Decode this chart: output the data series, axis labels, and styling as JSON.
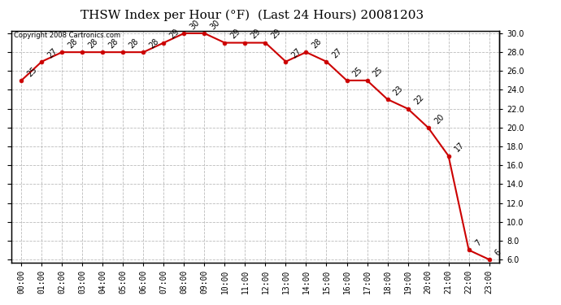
{
  "title": "THSW Index per Hour (°F)  (Last 24 Hours) 20081203",
  "copyright": "Copyright 2008 Cartronics.com",
  "hours": [
    "00:00",
    "01:00",
    "02:00",
    "03:00",
    "04:00",
    "05:00",
    "06:00",
    "07:00",
    "08:00",
    "09:00",
    "10:00",
    "11:00",
    "12:00",
    "13:00",
    "14:00",
    "15:00",
    "16:00",
    "17:00",
    "18:00",
    "19:00",
    "20:00",
    "21:00",
    "22:00",
    "23:00"
  ],
  "values": [
    25,
    27,
    28,
    28,
    28,
    28,
    28,
    29,
    30,
    30,
    29,
    29,
    29,
    27,
    28,
    27,
    25,
    25,
    23,
    22,
    20,
    17,
    7,
    6
  ],
  "ylim_min": 6.0,
  "ylim_max": 30.0,
  "yticks": [
    6.0,
    8.0,
    10.0,
    12.0,
    14.0,
    16.0,
    18.0,
    20.0,
    22.0,
    24.0,
    26.0,
    28.0,
    30.0
  ],
  "line_color": "#cc0000",
  "marker_color": "#cc0000",
  "marker_size": 3.5,
  "bg_color": "#ffffff",
  "grid_color": "#bbbbbb",
  "grid_style": "--",
  "title_fontsize": 11,
  "label_fontsize": 7,
  "annotation_fontsize": 7,
  "copyright_fontsize": 6
}
